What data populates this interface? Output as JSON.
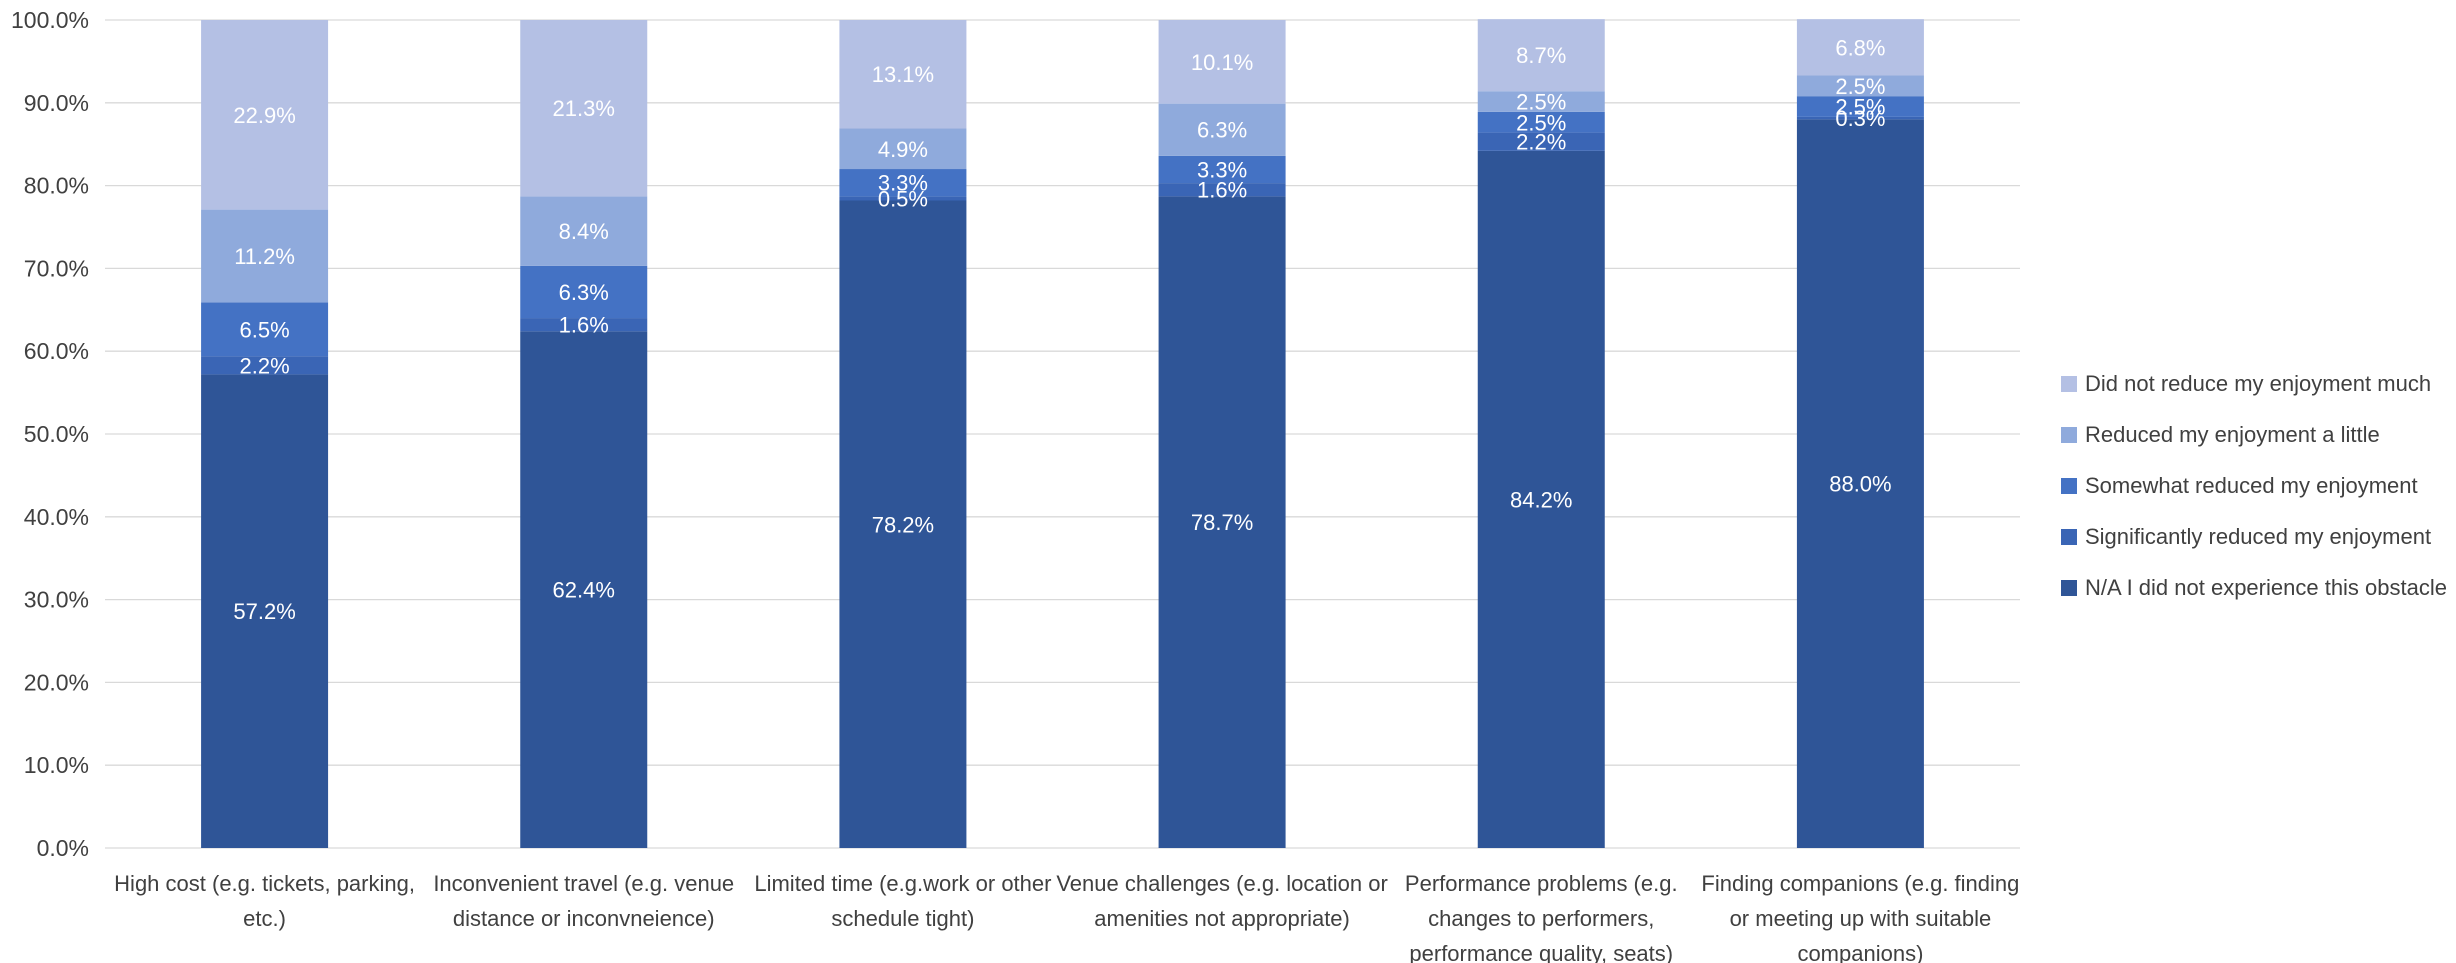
{
  "chart_data": {
    "type": "bar",
    "stacked": true,
    "categories": [
      [
        "High cost (e.g. tickets, parking,",
        "etc.)"
      ],
      [
        "Inconvenient travel (e.g. venue",
        "distance or inconvneience)"
      ],
      [
        "Limited time (e.g.work or other",
        "schedule tight)"
      ],
      [
        "Venue challenges (e.g. location or",
        "amenities not appropriate)"
      ],
      [
        "Performance problems (e.g.",
        "changes to performers,",
        "performance quality, seats)"
      ],
      [
        "Finding companions (e.g. finding",
        "or meeting up with suitable",
        "companions)"
      ]
    ],
    "series": [
      {
        "name": "N/A I did not experience this obstacle",
        "color": "#2f5597",
        "label_color": "#ffffff",
        "values": [
          57.2,
          62.4,
          78.2,
          78.7,
          84.2,
          88.0
        ]
      },
      {
        "name": "Significantly reduced my enjoyment",
        "color": "#3a65b5",
        "label_color": "#ffffff",
        "values": [
          2.2,
          1.6,
          0.5,
          1.6,
          2.2,
          0.3
        ]
      },
      {
        "name": "Somewhat reduced my enjoyment",
        "color": "#4472c4",
        "label_color": "#ffffff",
        "values": [
          6.5,
          6.3,
          3.3,
          3.3,
          2.5,
          2.5
        ]
      },
      {
        "name": "Reduced my enjoyment a little",
        "color": "#8faadc",
        "label_color": "#ffffff",
        "values": [
          11.2,
          8.4,
          4.9,
          6.3,
          2.5,
          2.5
        ]
      },
      {
        "name": "Did not reduce my enjoyment much",
        "color": "#b4c0e4",
        "label_color": "#ffffff",
        "values": [
          22.9,
          21.3,
          13.1,
          10.1,
          8.7,
          6.8
        ]
      }
    ],
    "legend_order": [
      4,
      3,
      2,
      1,
      0
    ],
    "legend_position": "right",
    "ylim": [
      0,
      100
    ],
    "yticks": [
      "0.0%",
      "10.0%",
      "20.0%",
      "30.0%",
      "40.0%",
      "50.0%",
      "60.0%",
      "70.0%",
      "80.0%",
      "90.0%",
      "100.0%"
    ],
    "grid": true,
    "xlabel": "",
    "ylabel": "",
    "title": ""
  },
  "colors": {
    "grid": "#d9d9d9",
    "axis_text": "#404040"
  }
}
